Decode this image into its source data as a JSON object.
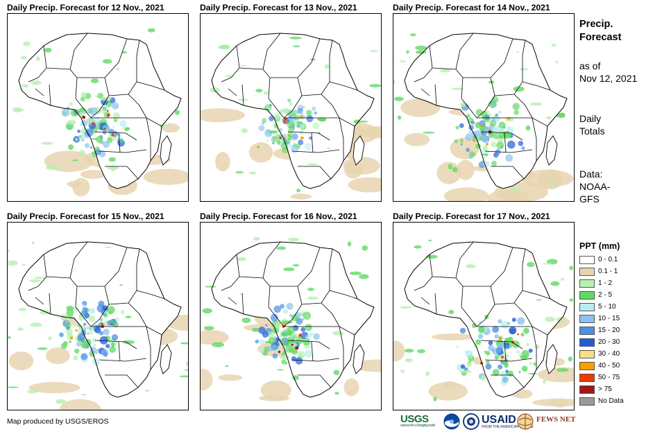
{
  "panels": [
    {
      "title": "Daily Precip. Forecast for 12 Nov., 2021"
    },
    {
      "title": "Daily Precip. Forecast for 13 Nov., 2021"
    },
    {
      "title": "Daily Precip. Forecast for 14 Nov., 2021"
    },
    {
      "title": "Daily Precip. Forecast for 15 Nov., 2021"
    },
    {
      "title": "Daily Precip. Forecast for 16 Nov., 2021"
    },
    {
      "title": "Daily Precip. Forecast for 17 Nov., 2021"
    }
  ],
  "side": {
    "heading_line1": "Precip.",
    "heading_line2": "Forecast",
    "asof_line1": "as of",
    "asof_line2": "Nov 12, 2021",
    "totals_line1": "Daily",
    "totals_line2": "Totals",
    "data_line1": "Data:",
    "data_line2": "NOAA-",
    "data_line3": "GFS"
  },
  "legend": {
    "title": "PPT (mm)",
    "items": [
      {
        "label": "0 - 0.1",
        "color": "#ffffff"
      },
      {
        "label": "0.1 - 1",
        "color": "#e8d5b0"
      },
      {
        "label": "1 - 2",
        "color": "#b5f0b0"
      },
      {
        "label": "2 - 5",
        "color": "#62d864"
      },
      {
        "label": "5 - 10",
        "color": "#b8eef2"
      },
      {
        "label": "10 - 15",
        "color": "#8cc2ee"
      },
      {
        "label": "15 - 20",
        "color": "#4f8fe4"
      },
      {
        "label": "20 - 30",
        "color": "#1f5ed9"
      },
      {
        "label": "30 - 40",
        "color": "#f8e08a"
      },
      {
        "label": "40 - 50",
        "color": "#f5a000"
      },
      {
        "label": "50 - 75",
        "color": "#f03a00"
      },
      {
        "label": "> 75",
        "color": "#a01818"
      },
      {
        "label": "No Data",
        "color": "#9a9a9a"
      }
    ]
  },
  "credit": "Map produced by USGS/EROS",
  "logos": {
    "usgs": "USGS",
    "usgs_tag": "science for a changing world",
    "usaid": "USAID",
    "usaid_tag": "FROM THE AMERICAN PEOPLE",
    "fews": "FEWS NET"
  }
}
